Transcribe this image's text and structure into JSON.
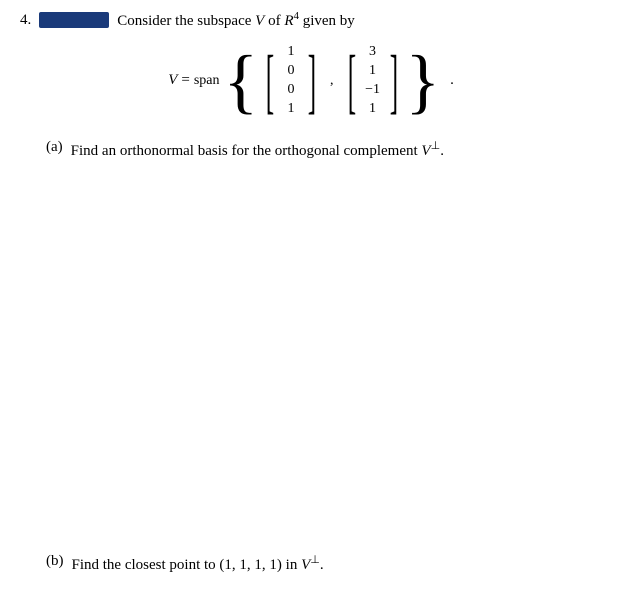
{
  "problem": {
    "number": "4.",
    "intro_text_1": "Consider the subspace ",
    "intro_V": "V",
    "intro_text_2": " of ",
    "intro_R": "R",
    "intro_R_sup": "4",
    "intro_text_3": " given by"
  },
  "equation": {
    "lhs_V": "V",
    "equals": " = ",
    "span_word": "span",
    "vector1": {
      "r1": "1",
      "r2": "0",
      "r3": "0",
      "r4": "1"
    },
    "vector2": {
      "r1": "3",
      "r2": "1",
      "r3": "−1",
      "r4": "1"
    },
    "comma": ",",
    "period": "."
  },
  "part_a": {
    "label": "(a)",
    "text_1": "Find an orthonormal basis for the orthogonal complement ",
    "V_perp_V": "V",
    "V_perp_sup": "⊥",
    "text_2": "."
  },
  "part_b": {
    "label": "(b)",
    "text_1": "Find the closest point to ",
    "point": "(1, 1, 1, 1)",
    "text_2": " in ",
    "V_perp_V": "V",
    "V_perp_sup": "⊥",
    "text_3": "."
  }
}
